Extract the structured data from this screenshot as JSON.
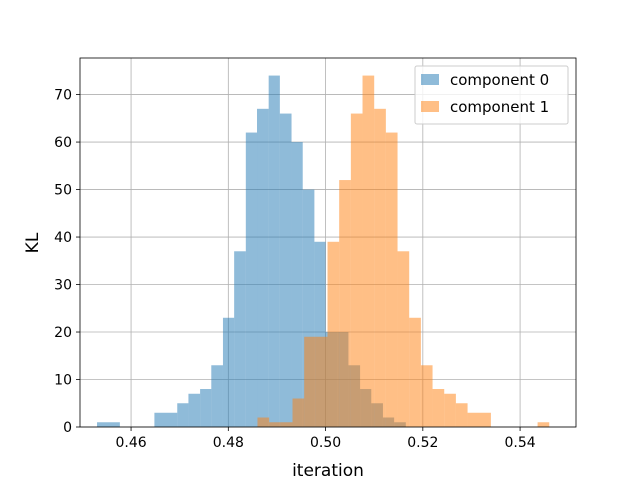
{
  "chart_data": {
    "type": "bar",
    "subtype": "overlapping-histogram",
    "title": "",
    "xlabel": "iteration",
    "ylabel": "KL",
    "xlim": [
      0.4495,
      0.5515
    ],
    "ylim": [
      0,
      77.7
    ],
    "xticks": [
      0.46,
      0.48,
      0.5,
      0.52,
      0.54
    ],
    "xtick_labels": [
      "0.46",
      "0.48",
      "0.50",
      "0.52",
      "0.54"
    ],
    "yticks": [
      0,
      10,
      20,
      30,
      40,
      50,
      60,
      70
    ],
    "ytick_labels": [
      "0",
      "10",
      "20",
      "30",
      "40",
      "50",
      "60",
      "70"
    ],
    "grid": true,
    "legend": "top-right",
    "alpha": 0.5,
    "series": [
      {
        "name": "component 0",
        "color": "#1f77b4",
        "bins": [
          [
            0.453,
            0.4577,
            1
          ],
          [
            0.4577,
            0.4624,
            0
          ],
          [
            0.4624,
            0.4648,
            0
          ],
          [
            0.4648,
            0.4695,
            3
          ],
          [
            0.4695,
            0.4718,
            5
          ],
          [
            0.4718,
            0.4742,
            7
          ],
          [
            0.4742,
            0.4765,
            8
          ],
          [
            0.4765,
            0.4789,
            13
          ],
          [
            0.4789,
            0.4812,
            23
          ],
          [
            0.4812,
            0.4836,
            37
          ],
          [
            0.4836,
            0.4859,
            62
          ],
          [
            0.4859,
            0.4883,
            67
          ],
          [
            0.4883,
            0.4906,
            74
          ],
          [
            0.4906,
            0.493,
            66
          ],
          [
            0.493,
            0.4953,
            60
          ],
          [
            0.4953,
            0.4977,
            50
          ],
          [
            0.4977,
            0.5,
            39
          ],
          [
            0.5,
            0.5024,
            20
          ],
          [
            0.5024,
            0.5047,
            20
          ],
          [
            0.5047,
            0.5071,
            13
          ],
          [
            0.5071,
            0.5094,
            8
          ],
          [
            0.5094,
            0.5118,
            5
          ],
          [
            0.5118,
            0.5141,
            2
          ],
          [
            0.5141,
            0.5165,
            1
          ]
        ]
      },
      {
        "name": "component 1",
        "color": "#ff7f0e",
        "bins": [
          [
            0.486,
            0.4884,
            2
          ],
          [
            0.4884,
            0.4908,
            1
          ],
          [
            0.4908,
            0.4932,
            1
          ],
          [
            0.4932,
            0.4956,
            6
          ],
          [
            0.4956,
            0.498,
            19
          ],
          [
            0.498,
            0.5004,
            19
          ],
          [
            0.5004,
            0.5028,
            39
          ],
          [
            0.5028,
            0.5052,
            52
          ],
          [
            0.5052,
            0.5076,
            66
          ],
          [
            0.5076,
            0.51,
            74
          ],
          [
            0.51,
            0.5124,
            67
          ],
          [
            0.5124,
            0.5148,
            62
          ],
          [
            0.5148,
            0.5172,
            37
          ],
          [
            0.5172,
            0.5196,
            23
          ],
          [
            0.5196,
            0.522,
            13
          ],
          [
            0.522,
            0.5244,
            8
          ],
          [
            0.5244,
            0.5268,
            7
          ],
          [
            0.5268,
            0.5292,
            5
          ],
          [
            0.5292,
            0.534,
            3
          ],
          [
            0.534,
            0.5436,
            0
          ],
          [
            0.5436,
            0.546,
            1
          ]
        ]
      }
    ]
  }
}
